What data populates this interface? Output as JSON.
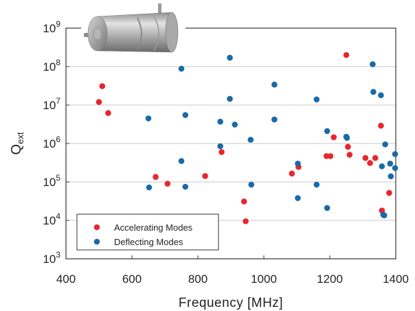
{
  "chart_data": {
    "type": "scatter",
    "title": "",
    "xlabel": "Frequency [MHz]",
    "ylabel": {
      "main": "Q",
      "sub": "ext"
    },
    "xlim": [
      400,
      1400
    ],
    "ylim": [
      1000,
      1000000000
    ],
    "yscale": "log",
    "grid": "horizontal",
    "legend_position": "bottom-left",
    "x_ticks": [
      "400",
      "600",
      "800",
      "1000",
      "1200",
      "1400"
    ],
    "y_ticks": [
      {
        "base": "10",
        "exp": "3"
      },
      {
        "base": "10",
        "exp": "4"
      },
      {
        "base": "10",
        "exp": "5"
      },
      {
        "base": "10",
        "exp": "6"
      },
      {
        "base": "10",
        "exp": "7"
      },
      {
        "base": "10",
        "exp": "8"
      },
      {
        "base": "10",
        "exp": "9"
      }
    ],
    "series": [
      {
        "name": "Accelerating Modes",
        "color": "#e8262e",
        "points": [
          [
            500,
            12000000
          ],
          [
            510,
            31000000
          ],
          [
            528,
            6200000
          ],
          [
            672,
            135000
          ],
          [
            708,
            90000
          ],
          [
            822,
            142000
          ],
          [
            872,
            600000
          ],
          [
            940,
            31000
          ],
          [
            945,
            9500
          ],
          [
            1085,
            165000
          ],
          [
            1105,
            245000
          ],
          [
            1190,
            470000
          ],
          [
            1202,
            470000
          ],
          [
            1212,
            1450000
          ],
          [
            1250,
            200000000
          ],
          [
            1255,
            820000
          ],
          [
            1260,
            510000
          ],
          [
            1308,
            420000
          ],
          [
            1322,
            310000
          ],
          [
            1338,
            420000
          ],
          [
            1355,
            2900000
          ],
          [
            1358,
            18000
          ],
          [
            1380,
            52000
          ]
        ]
      },
      {
        "name": "Deflecting Modes",
        "color": "#1a6aa8",
        "points": [
          [
            650,
            4500000
          ],
          [
            652,
            72000
          ],
          [
            750,
            88000000
          ],
          [
            750,
            350000
          ],
          [
            762,
            5500000
          ],
          [
            762,
            75000
          ],
          [
            868,
            3700000
          ],
          [
            868,
            850000
          ],
          [
            897,
            170000000
          ],
          [
            897,
            14500000
          ],
          [
            912,
            3100000
          ],
          [
            960,
            1250000
          ],
          [
            962,
            85000
          ],
          [
            1032,
            34000000
          ],
          [
            1032,
            4200000
          ],
          [
            1103,
            300000
          ],
          [
            1103,
            38000
          ],
          [
            1160,
            14000000
          ],
          [
            1160,
            85000
          ],
          [
            1192,
            2100000
          ],
          [
            1192,
            21000
          ],
          [
            1250,
            1500000
          ],
          [
            1252,
            1400000
          ],
          [
            1330,
            115000000
          ],
          [
            1332,
            22000000
          ],
          [
            1355,
            18000000
          ],
          [
            1358,
            255000
          ],
          [
            1362,
            14000
          ],
          [
            1365,
            13500
          ],
          [
            1368,
            950000
          ],
          [
            1383,
            300000
          ],
          [
            1385,
            140000
          ],
          [
            1398,
            530000
          ],
          [
            1398,
            230000
          ]
        ]
      }
    ]
  }
}
